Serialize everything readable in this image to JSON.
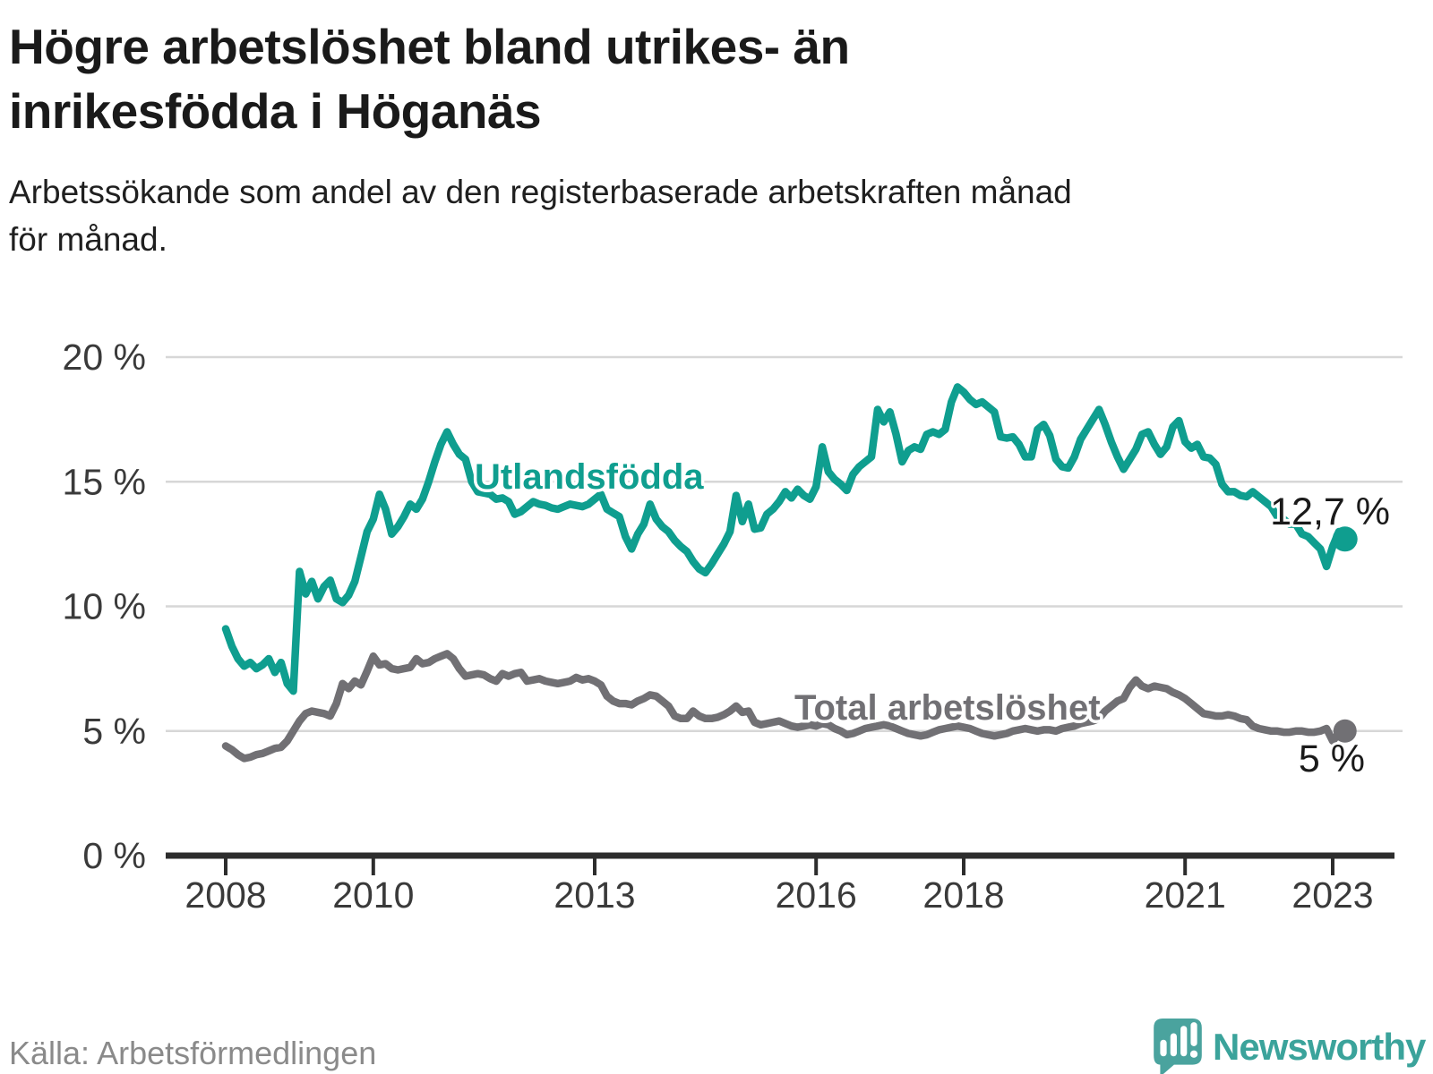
{
  "title": {
    "line1": "Högre arbetslöshet bland utrikes- än",
    "line2": "inrikesfödda i Höganäs"
  },
  "subtitle": {
    "line1": "Arbetssökande som andel av den registerbaserade arbetskraften månad",
    "line2": "för månad."
  },
  "source": "Källa: Arbetsförmedlingen",
  "logo": {
    "text": "Newsworthy",
    "icon": "newsworthy-speech-bubble-bar-chart-icon"
  },
  "colors": {
    "accent_teal": "#0f9e8f",
    "accent_gray": "#717074",
    "gridline": "#d7d7d7",
    "axis": "#2d2d2d",
    "text_dark": "#1a1a1a",
    "source_gray": "#8a8a8a",
    "logo_teal": "#4aa39e",
    "logo_text_teal": "#3ba39b"
  },
  "chart_data": {
    "type": "line",
    "title": "",
    "xlabel": "",
    "ylabel": "",
    "x_unit": "year-month",
    "x_start_year": 2008,
    "points_per_year": 12,
    "x_ticks": [
      2008,
      2010,
      2013,
      2016,
      2018,
      2021,
      2023
    ],
    "y_ticks": [
      "20 %",
      "15 %",
      "10 %",
      "5 %",
      "0 %"
    ],
    "y_tick_values": [
      20,
      15,
      10,
      5,
      0
    ],
    "ylim": [
      0,
      21
    ],
    "grid": true,
    "legend_position": "inline-labels",
    "series": [
      {
        "name": "Utlandsfödda",
        "color": "#0f9e8f",
        "end_label": "12,7 %",
        "end_value": 12.7,
        "values": [
          9.1,
          8.4,
          7.9,
          7.6,
          7.75,
          7.5,
          7.65,
          7.9,
          7.35,
          7.75,
          6.9,
          6.6,
          11.4,
          10.5,
          11.0,
          10.3,
          10.8,
          11.05,
          10.3,
          10.15,
          10.45,
          11.0,
          12.0,
          13.0,
          13.5,
          14.5,
          13.9,
          12.9,
          13.2,
          13.6,
          14.1,
          13.9,
          14.3,
          15.0,
          15.8,
          16.5,
          17.0,
          16.5,
          16.1,
          15.9,
          15.0,
          14.6,
          14.55,
          14.5,
          14.3,
          14.35,
          14.2,
          13.7,
          13.8,
          14.0,
          14.2,
          14.1,
          14.05,
          13.95,
          13.9,
          14.0,
          14.1,
          14.05,
          14.0,
          14.1,
          14.3,
          14.5,
          13.9,
          13.75,
          13.6,
          12.8,
          12.3,
          12.9,
          13.3,
          14.1,
          13.5,
          13.2,
          13.0,
          12.65,
          12.4,
          12.2,
          11.8,
          11.5,
          11.35,
          11.7,
          12.1,
          12.5,
          13.0,
          14.45,
          13.4,
          14.1,
          13.1,
          13.15,
          13.7,
          13.9,
          14.2,
          14.6,
          14.35,
          14.7,
          14.45,
          14.3,
          14.8,
          16.4,
          15.4,
          15.1,
          14.9,
          14.65,
          15.3,
          15.6,
          15.8,
          16.0,
          17.9,
          17.4,
          17.8,
          16.9,
          15.8,
          16.25,
          16.4,
          16.3,
          16.9,
          17.0,
          16.9,
          17.1,
          18.2,
          18.8,
          18.6,
          18.3,
          18.1,
          18.2,
          18.0,
          17.8,
          16.8,
          16.75,
          16.8,
          16.5,
          16.0,
          16.0,
          17.1,
          17.3,
          16.85,
          15.9,
          15.6,
          15.55,
          16.0,
          16.7,
          17.1,
          17.5,
          17.9,
          17.3,
          16.6,
          16.0,
          15.5,
          15.9,
          16.3,
          16.9,
          17.0,
          16.5,
          16.1,
          16.4,
          17.2,
          17.45,
          16.6,
          16.35,
          16.5,
          16.0,
          15.95,
          15.7,
          14.9,
          14.6,
          14.6,
          14.45,
          14.4,
          14.6,
          14.4,
          14.2,
          14.0,
          13.6,
          13.5,
          13.3,
          13.3,
          12.9,
          12.8,
          12.55,
          12.3,
          11.6,
          12.4,
          13.0,
          12.7
        ]
      },
      {
        "name": "Total arbetslöshet",
        "color": "#717074",
        "end_label": "5 %",
        "end_value": 5.0,
        "values": [
          4.4,
          4.25,
          4.05,
          3.9,
          3.95,
          4.05,
          4.1,
          4.2,
          4.3,
          4.35,
          4.6,
          5.0,
          5.4,
          5.7,
          5.8,
          5.75,
          5.7,
          5.6,
          6.1,
          6.9,
          6.7,
          7.0,
          6.85,
          7.4,
          8.0,
          7.65,
          7.7,
          7.5,
          7.45,
          7.5,
          7.55,
          7.9,
          7.7,
          7.75,
          7.9,
          8.0,
          8.1,
          7.9,
          7.5,
          7.2,
          7.25,
          7.3,
          7.25,
          7.1,
          7.0,
          7.3,
          7.2,
          7.3,
          7.35,
          7.0,
          7.05,
          7.1,
          7.0,
          6.95,
          6.9,
          6.95,
          7.0,
          7.15,
          7.05,
          7.1,
          7.0,
          6.85,
          6.4,
          6.2,
          6.1,
          6.1,
          6.05,
          6.2,
          6.3,
          6.45,
          6.4,
          6.2,
          6.0,
          5.6,
          5.5,
          5.5,
          5.8,
          5.6,
          5.5,
          5.5,
          5.55,
          5.65,
          5.8,
          6.0,
          5.75,
          5.8,
          5.35,
          5.25,
          5.3,
          5.35,
          5.4,
          5.3,
          5.2,
          5.15,
          5.2,
          5.25,
          5.2,
          5.3,
          5.25,
          5.1,
          5.0,
          4.85,
          4.9,
          5.0,
          5.1,
          5.15,
          5.2,
          5.25,
          5.2,
          5.1,
          5.0,
          4.9,
          4.85,
          4.8,
          4.85,
          4.95,
          5.05,
          5.1,
          5.15,
          5.2,
          5.15,
          5.1,
          5.0,
          4.9,
          4.85,
          4.8,
          4.85,
          4.9,
          5.0,
          5.05,
          5.1,
          5.05,
          5.0,
          5.05,
          5.05,
          5.0,
          5.1,
          5.15,
          5.2,
          5.3,
          5.35,
          5.4,
          5.5,
          5.8,
          6.0,
          6.2,
          6.3,
          6.75,
          7.05,
          6.8,
          6.7,
          6.8,
          6.75,
          6.7,
          6.55,
          6.45,
          6.3,
          6.1,
          5.9,
          5.7,
          5.65,
          5.6,
          5.6,
          5.65,
          5.6,
          5.5,
          5.45,
          5.2,
          5.1,
          5.05,
          5.0,
          5.0,
          4.95,
          4.95,
          5.0,
          5.0,
          4.95,
          4.95,
          5.0,
          5.1,
          4.6,
          4.9,
          5.0
        ]
      }
    ]
  }
}
